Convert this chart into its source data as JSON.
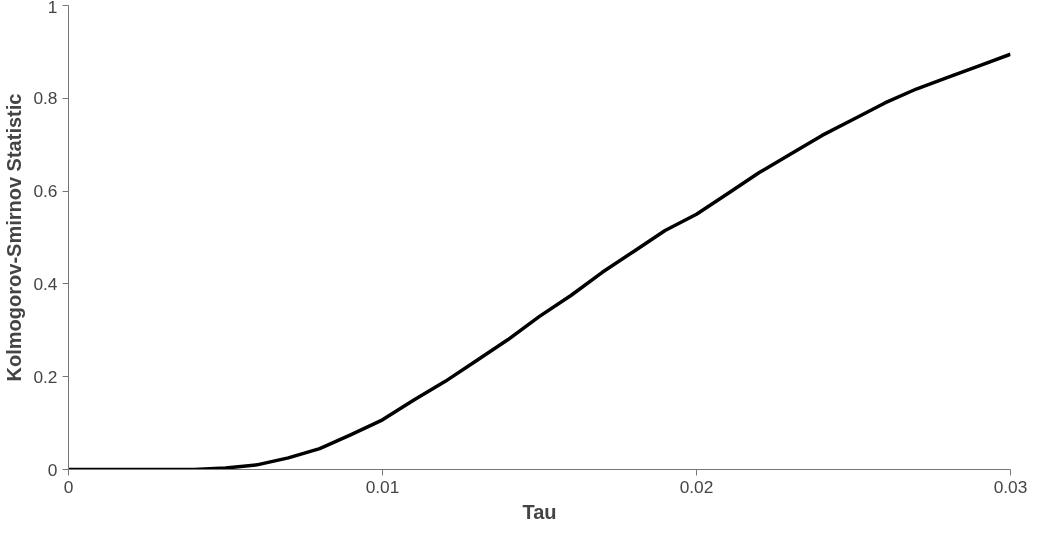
{
  "chart_data": {
    "type": "line",
    "xlabel": "Tau",
    "ylabel": "Kolmogorov-Smirnov Statistic",
    "x": [
      0,
      0.001,
      0.002,
      0.003,
      0.004,
      0.005,
      0.006,
      0.007,
      0.008,
      0.009,
      0.01,
      0.011,
      0.012,
      0.013,
      0.014,
      0.015,
      0.016,
      0.017,
      0.018,
      0.019,
      0.02,
      0.021,
      0.022,
      0.023,
      0.024,
      0.025,
      0.026,
      0.027,
      0.028,
      0.029,
      0.03
    ],
    "series": [
      {
        "color": "#000000",
        "values": [
          0,
          0,
          0,
          0,
          0,
          0.003,
          0.01,
          0.025,
          0.045,
          0.075,
          0.107,
          0.15,
          0.19,
          0.235,
          0.28,
          0.33,
          0.375,
          0.425,
          0.47,
          0.515,
          0.55,
          0.595,
          0.64,
          0.68,
          0.72,
          0.755,
          0.79,
          0.82,
          0.845,
          0.87,
          0.895
        ]
      }
    ],
    "xlim": [
      0,
      0.03
    ],
    "xticks": [
      0,
      0.01,
      0.02,
      0.03
    ],
    "ylim": [
      0,
      1
    ],
    "yticks": [
      0,
      0.2,
      0.4,
      0.6,
      0.8,
      1
    ],
    "grid": false,
    "marker": "none",
    "line_style": "solid"
  }
}
